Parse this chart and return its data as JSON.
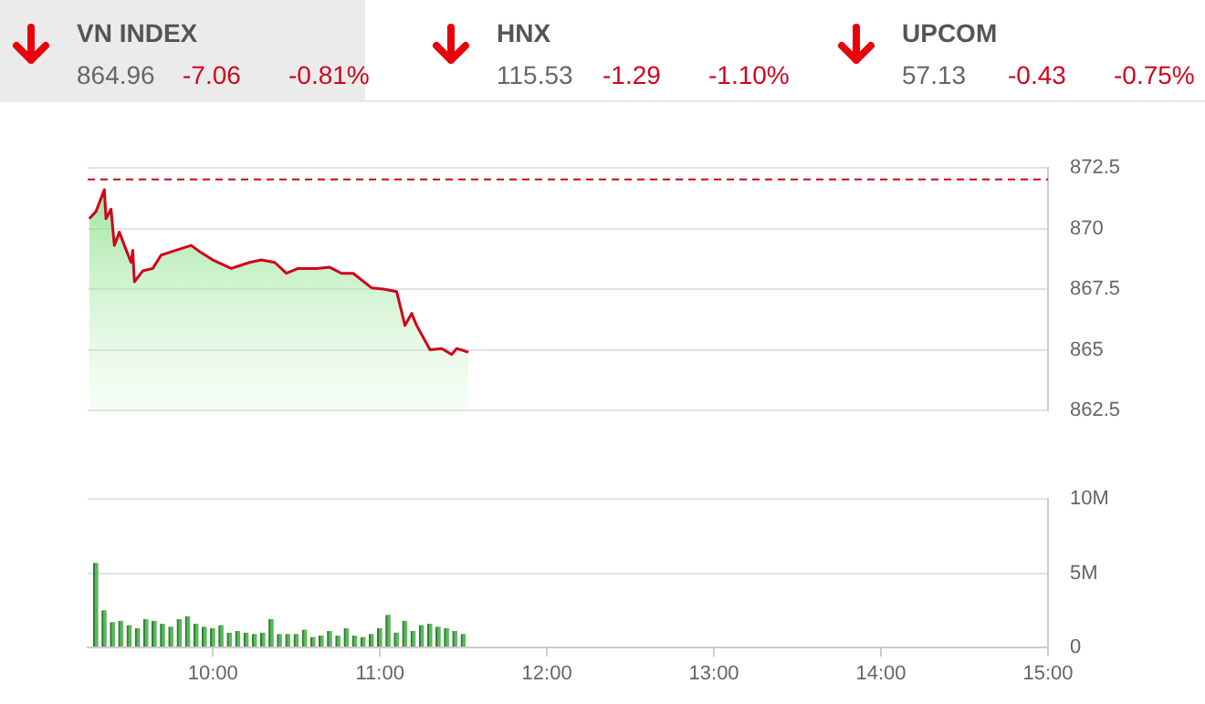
{
  "chart_data": [
    {
      "type": "other",
      "annotations": [
        "VN INDEX",
        "864.96",
        "-7.06",
        "-0.81%",
        "HNX",
        "115.53",
        "-1.29",
        "-1.10%",
        "UPCOM",
        "57.13",
        "-0.43",
        "-0.75%"
      ]
    },
    {
      "type": "area",
      "color": "#d0021b",
      "xlim": [
        9.25,
        15
      ],
      "ylim": [
        862.5,
        872.5
      ],
      "yticks": [
        862.5,
        865,
        867.5,
        870,
        872.5
      ],
      "grid": "y",
      "tick_labels": "y",
      "x": [
        9.26,
        9.3,
        9.35,
        9.36,
        9.39,
        9.41,
        9.44,
        9.47,
        9.51,
        9.52,
        9.53,
        9.58,
        9.64,
        9.69,
        9.78,
        9.87,
        9.93,
        10.0,
        10.11,
        10.22,
        10.29,
        10.37,
        10.44,
        10.51,
        10.62,
        10.7,
        10.77,
        10.84,
        10.95,
        11.02,
        11.1,
        11.15,
        11.19,
        11.22,
        11.3,
        11.37,
        11.43,
        11.46,
        11.53
      ],
      "values": [
        870.4,
        870.7,
        871.6,
        870.4,
        870.8,
        869.3,
        869.85,
        869.3,
        868.6,
        869.1,
        867.8,
        868.25,
        868.35,
        868.9,
        869.1,
        869.3,
        869.0,
        868.7,
        868.35,
        868.6,
        868.7,
        868.6,
        868.15,
        868.35,
        868.35,
        868.4,
        868.15,
        868.15,
        867.55,
        867.5,
        867.4,
        866.0,
        866.5,
        866.0,
        865.0,
        865.05,
        864.8,
        865.05,
        864.9
      ],
      "ref_lines": [
        {
          "axis": "y",
          "value": 872.02,
          "color": "#d0021b",
          "line_style": "dashed"
        }
      ]
    },
    {
      "type": "bar",
      "color": "#5cb85c",
      "xlim": [
        9.25,
        15
      ],
      "ylim": [
        0,
        10
      ],
      "grid": "y",
      "xticks": [
        {
          "value": 10,
          "label": "10:00"
        },
        {
          "value": 11,
          "label": "11:00"
        },
        {
          "value": 12,
          "label": "12:00"
        },
        {
          "value": 13,
          "label": "13:00"
        },
        {
          "value": 14,
          "label": "14:00"
        },
        {
          "value": 15,
          "label": "15:00"
        }
      ],
      "yticks": [
        {
          "value": 0,
          "label": "0"
        },
        {
          "value": 5,
          "label": "5M"
        },
        {
          "value": 10,
          "label": "10M"
        }
      ],
      "x": [
        9.3,
        9.35,
        9.4,
        9.45,
        9.5,
        9.55,
        9.6,
        9.65,
        9.7,
        9.75,
        9.8,
        9.85,
        9.9,
        9.95,
        10,
        10.05,
        10.1,
        10.15,
        10.2,
        10.25,
        10.3,
        10.35,
        10.4,
        10.45,
        10.5,
        10.55,
        10.6,
        10.65,
        10.7,
        10.75,
        10.8,
        10.85,
        10.9,
        10.95,
        11,
        11.05,
        11.1,
        11.15,
        11.2,
        11.25,
        11.3,
        11.35,
        11.4,
        11.45,
        11.5
      ],
      "values": [
        5.7,
        2.5,
        1.7,
        1.8,
        1.5,
        1.3,
        1.9,
        1.8,
        1.6,
        1.4,
        1.9,
        2.1,
        1.6,
        1.4,
        1.3,
        1.5,
        1.0,
        1.1,
        1.0,
        0.9,
        1.0,
        1.9,
        0.9,
        0.9,
        0.9,
        1.2,
        0.7,
        0.8,
        1.1,
        0.8,
        1.3,
        0.8,
        0.7,
        0.9,
        1.3,
        2.2,
        1.0,
        1.8,
        1.1,
        1.5,
        1.6,
        1.4,
        1.3,
        1.1,
        0.9
      ]
    }
  ]
}
